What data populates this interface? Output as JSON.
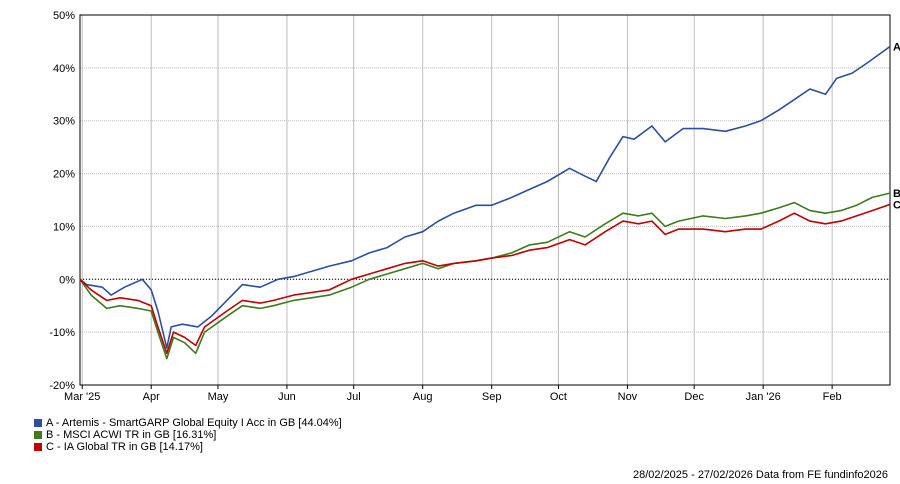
{
  "chart_data": {
    "type": "line",
    "ylim": [
      -20,
      50
    ],
    "yticks": [
      -20,
      -10,
      0,
      10,
      20,
      30,
      40,
      50
    ],
    "ytick_labels": [
      "-20%",
      "-10%",
      "0%",
      "10%",
      "20%",
      "30%",
      "40%",
      "50%"
    ],
    "xtick_labels": [
      "Mar '25",
      "Apr",
      "May",
      "Jun",
      "Jul",
      "Aug",
      "Sep",
      "Oct",
      "Nov",
      "Dec",
      "Jan '26",
      "Feb"
    ],
    "xtick_dates": [
      "2025-03-01",
      "2025-04-01",
      "2025-05-01",
      "2025-06-01",
      "2025-07-01",
      "2025-08-01",
      "2025-09-01",
      "2025-10-01",
      "2025-11-01",
      "2025-12-01",
      "2026-01-01",
      "2026-02-01"
    ],
    "x_start": "2025-02-28",
    "x_end": "2026-02-27",
    "grid": true,
    "zero_line": true,
    "series": [
      {
        "name": "A - Artemis - SmartGARP Global Equity I Acc in GB [44.04%]",
        "end_label": "A",
        "color": "#2e4f9e",
        "points": [
          [
            "2025-02-28",
            0
          ],
          [
            "2025-03-03",
            -1
          ],
          [
            "2025-03-10",
            -1.5
          ],
          [
            "2025-03-14",
            -3
          ],
          [
            "2025-03-20",
            -1.5
          ],
          [
            "2025-03-28",
            0
          ],
          [
            "2025-04-01",
            -2
          ],
          [
            "2025-04-04",
            -6
          ],
          [
            "2025-04-08",
            -13
          ],
          [
            "2025-04-10",
            -9
          ],
          [
            "2025-04-15",
            -8.5
          ],
          [
            "2025-04-22",
            -9
          ],
          [
            "2025-04-28",
            -7
          ],
          [
            "2025-05-05",
            -4
          ],
          [
            "2025-05-12",
            -1
          ],
          [
            "2025-05-20",
            -1.5
          ],
          [
            "2025-05-28",
            0
          ],
          [
            "2025-06-04",
            0.5
          ],
          [
            "2025-06-12",
            1.5
          ],
          [
            "2025-06-20",
            2.5
          ],
          [
            "2025-06-30",
            3.5
          ],
          [
            "2025-07-08",
            5
          ],
          [
            "2025-07-16",
            6
          ],
          [
            "2025-07-24",
            8
          ],
          [
            "2025-08-01",
            9
          ],
          [
            "2025-08-08",
            11
          ],
          [
            "2025-08-15",
            12.5
          ],
          [
            "2025-08-25",
            14
          ],
          [
            "2025-09-01",
            14
          ],
          [
            "2025-09-10",
            15.5
          ],
          [
            "2025-09-18",
            17
          ],
          [
            "2025-09-26",
            18.5
          ],
          [
            "2025-10-06",
            21
          ],
          [
            "2025-10-13",
            19.5
          ],
          [
            "2025-10-18",
            18.5
          ],
          [
            "2025-10-24",
            23
          ],
          [
            "2025-10-30",
            27
          ],
          [
            "2025-11-04",
            26.5
          ],
          [
            "2025-11-12",
            29
          ],
          [
            "2025-11-18",
            26
          ],
          [
            "2025-11-26",
            28.5
          ],
          [
            "2025-12-05",
            28.5
          ],
          [
            "2025-12-15",
            28
          ],
          [
            "2025-12-24",
            29
          ],
          [
            "2025-12-31",
            30
          ],
          [
            "2026-01-08",
            32
          ],
          [
            "2026-01-15",
            34
          ],
          [
            "2026-01-22",
            36
          ],
          [
            "2026-01-29",
            35
          ],
          [
            "2026-02-03",
            38
          ],
          [
            "2026-02-10",
            39
          ],
          [
            "2026-02-17",
            41
          ],
          [
            "2026-02-27",
            44.04
          ]
        ]
      },
      {
        "name": "B - MSCI ACWI TR in GB [16.31%]",
        "end_label": "B",
        "color": "#3e7a1e",
        "points": [
          [
            "2025-02-28",
            0
          ],
          [
            "2025-03-05",
            -3
          ],
          [
            "2025-03-12",
            -5.5
          ],
          [
            "2025-03-18",
            -5
          ],
          [
            "2025-03-26",
            -5.5
          ],
          [
            "2025-04-01",
            -6
          ],
          [
            "2025-04-04",
            -10
          ],
          [
            "2025-04-08",
            -15
          ],
          [
            "2025-04-11",
            -11
          ],
          [
            "2025-04-16",
            -12
          ],
          [
            "2025-04-21",
            -14
          ],
          [
            "2025-04-25",
            -10
          ],
          [
            "2025-05-05",
            -7
          ],
          [
            "2025-05-12",
            -5
          ],
          [
            "2025-05-20",
            -5.5
          ],
          [
            "2025-05-26",
            -5
          ],
          [
            "2025-06-04",
            -4
          ],
          [
            "2025-06-12",
            -3.5
          ],
          [
            "2025-06-20",
            -3
          ],
          [
            "2025-06-30",
            -1.5
          ],
          [
            "2025-07-08",
            0
          ],
          [
            "2025-07-16",
            1
          ],
          [
            "2025-07-24",
            2
          ],
          [
            "2025-08-01",
            3
          ],
          [
            "2025-08-08",
            2
          ],
          [
            "2025-08-15",
            3
          ],
          [
            "2025-08-25",
            3.5
          ],
          [
            "2025-09-01",
            4
          ],
          [
            "2025-09-10",
            5
          ],
          [
            "2025-09-18",
            6.5
          ],
          [
            "2025-09-26",
            7
          ],
          [
            "2025-10-06",
            9
          ],
          [
            "2025-10-13",
            8
          ],
          [
            "2025-10-22",
            10.5
          ],
          [
            "2025-10-30",
            12.5
          ],
          [
            "2025-11-06",
            12
          ],
          [
            "2025-11-12",
            12.5
          ],
          [
            "2025-11-18",
            10
          ],
          [
            "2025-11-24",
            11
          ],
          [
            "2025-12-05",
            12
          ],
          [
            "2025-12-15",
            11.5
          ],
          [
            "2025-12-24",
            12
          ],
          [
            "2025-12-31",
            12.5
          ],
          [
            "2026-01-08",
            13.5
          ],
          [
            "2026-01-15",
            14.5
          ],
          [
            "2026-01-22",
            13
          ],
          [
            "2026-01-29",
            12.5
          ],
          [
            "2026-02-05",
            13
          ],
          [
            "2026-02-12",
            14
          ],
          [
            "2026-02-19",
            15.5
          ],
          [
            "2026-02-27",
            16.31
          ]
        ]
      },
      {
        "name": "C - IA Global TR in GB [14.17%]",
        "end_label": "C",
        "color": "#c00000",
        "points": [
          [
            "2025-02-28",
            0
          ],
          [
            "2025-03-05",
            -2
          ],
          [
            "2025-03-12",
            -4
          ],
          [
            "2025-03-18",
            -3.5
          ],
          [
            "2025-03-26",
            -4
          ],
          [
            "2025-04-01",
            -5
          ],
          [
            "2025-04-04",
            -9
          ],
          [
            "2025-04-08",
            -14
          ],
          [
            "2025-04-11",
            -10
          ],
          [
            "2025-04-16",
            -11
          ],
          [
            "2025-04-21",
            -12.5
          ],
          [
            "2025-04-25",
            -9
          ],
          [
            "2025-05-05",
            -6
          ],
          [
            "2025-05-12",
            -4
          ],
          [
            "2025-05-20",
            -4.5
          ],
          [
            "2025-05-26",
            -4
          ],
          [
            "2025-06-04",
            -3
          ],
          [
            "2025-06-12",
            -2.5
          ],
          [
            "2025-06-20",
            -2
          ],
          [
            "2025-06-30",
            0
          ],
          [
            "2025-07-08",
            1
          ],
          [
            "2025-07-16",
            2
          ],
          [
            "2025-07-24",
            3
          ],
          [
            "2025-08-01",
            3.5
          ],
          [
            "2025-08-08",
            2.5
          ],
          [
            "2025-08-15",
            3
          ],
          [
            "2025-08-25",
            3.5
          ],
          [
            "2025-09-01",
            4
          ],
          [
            "2025-09-10",
            4.5
          ],
          [
            "2025-09-18",
            5.5
          ],
          [
            "2025-09-26",
            6
          ],
          [
            "2025-10-06",
            7.5
          ],
          [
            "2025-10-13",
            6.5
          ],
          [
            "2025-10-22",
            9
          ],
          [
            "2025-10-30",
            11
          ],
          [
            "2025-11-06",
            10.5
          ],
          [
            "2025-11-12",
            11
          ],
          [
            "2025-11-18",
            8.5
          ],
          [
            "2025-11-24",
            9.5
          ],
          [
            "2025-12-05",
            9.5
          ],
          [
            "2025-12-15",
            9
          ],
          [
            "2025-12-24",
            9.5
          ],
          [
            "2025-12-31",
            9.5
          ],
          [
            "2026-01-08",
            11
          ],
          [
            "2026-01-15",
            12.5
          ],
          [
            "2026-01-22",
            11
          ],
          [
            "2026-01-29",
            10.5
          ],
          [
            "2026-02-05",
            11
          ],
          [
            "2026-02-12",
            12
          ],
          [
            "2026-02-19",
            13
          ],
          [
            "2026-02-27",
            14.17
          ]
        ]
      }
    ]
  },
  "footer": {
    "text": "28/02/2025 - 27/02/2026 Data from FE fundinfo2026"
  }
}
